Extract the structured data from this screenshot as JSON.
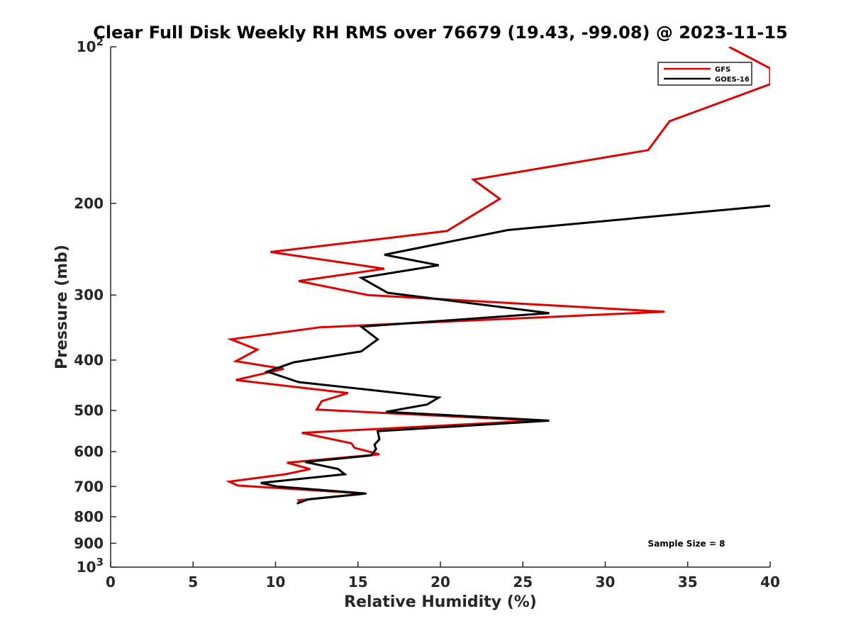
{
  "chart_data": {
    "type": "line",
    "title": "Clear Full Disk Weekly RH RMS over 76679 (19.43, -99.08) @ 2023-11-15",
    "xlabel": "Relative Humidity (%)",
    "ylabel": "Pressure (mb)",
    "xlim": [
      0,
      40
    ],
    "ylim": [
      100,
      1000
    ],
    "y_scale": "log",
    "y_reversed": true,
    "x_ticks": [
      0,
      5,
      10,
      15,
      20,
      25,
      30,
      35,
      40
    ],
    "y_ticks": [
      {
        "value": 100,
        "label": "10",
        "sup": "2"
      },
      {
        "value": 200,
        "label": "200"
      },
      {
        "value": 300,
        "label": "300"
      },
      {
        "value": 400,
        "label": "400"
      },
      {
        "value": 500,
        "label": "500"
      },
      {
        "value": 600,
        "label": "600"
      },
      {
        "value": 700,
        "label": "700"
      },
      {
        "value": 800,
        "label": "800"
      },
      {
        "value": 900,
        "label": "900"
      },
      {
        "value": 1000,
        "label": "10",
        "sup": "3"
      }
    ],
    "grid": false,
    "legend_position": "top-right",
    "annotation": "Sample Size = 8",
    "series": [
      {
        "name": "GFS",
        "color": "#e00000",
        "points": [
          [
            37.5,
            100
          ],
          [
            40,
            110
          ],
          [
            40,
            118
          ],
          [
            33.9,
            139
          ],
          [
            32.6,
            158
          ],
          [
            22.0,
            180
          ],
          [
            23.6,
            196
          ],
          [
            20.4,
            226
          ],
          [
            9.7,
            248
          ],
          [
            16.6,
            267
          ],
          [
            11.4,
            282
          ],
          [
            15.6,
            300
          ],
          [
            33.6,
            323
          ],
          [
            12.7,
            346
          ],
          [
            7.3,
            365
          ],
          [
            8.9,
            382
          ],
          [
            7.6,
            402
          ],
          [
            10.5,
            416
          ],
          [
            7.6,
            437
          ],
          [
            14.4,
            463
          ],
          [
            12.8,
            480
          ],
          [
            12.5,
            498
          ],
          [
            25.9,
            523
          ],
          [
            11.6,
            552
          ],
          [
            14.6,
            578
          ],
          [
            14.8,
            590
          ],
          [
            16.3,
            607
          ],
          [
            10.7,
            630
          ],
          [
            12.1,
            648
          ],
          [
            10.6,
            663
          ],
          [
            7.2,
            685
          ],
          [
            7.7,
            697
          ],
          [
            15.4,
            722
          ],
          [
            11.4,
            744
          ],
          [
            11.5,
            752
          ]
        ]
      },
      {
        "name": "GOES-16",
        "color": "#000000",
        "points": [
          [
            40,
            202
          ],
          [
            24.1,
            225
          ],
          [
            16.6,
            251
          ],
          [
            19.9,
            263
          ],
          [
            15.2,
            278
          ],
          [
            16.8,
            297
          ],
          [
            26.6,
            325
          ],
          [
            15.2,
            345
          ],
          [
            16.2,
            365
          ],
          [
            15.2,
            385
          ],
          [
            11.1,
            404
          ],
          [
            9.5,
            421
          ],
          [
            11.4,
            441
          ],
          [
            19.9,
            472
          ],
          [
            19.2,
            487
          ],
          [
            16.7,
            503
          ],
          [
            26.6,
            523
          ],
          [
            16.2,
            548
          ],
          [
            16.3,
            568
          ],
          [
            16.0,
            582
          ],
          [
            16.1,
            593
          ],
          [
            15.8,
            610
          ],
          [
            11.8,
            628
          ],
          [
            13.8,
            648
          ],
          [
            14.2,
            663
          ],
          [
            9.1,
            689
          ],
          [
            10.1,
            700
          ],
          [
            15.5,
            722
          ],
          [
            12.0,
            741
          ],
          [
            11.3,
            755
          ]
        ]
      }
    ]
  }
}
